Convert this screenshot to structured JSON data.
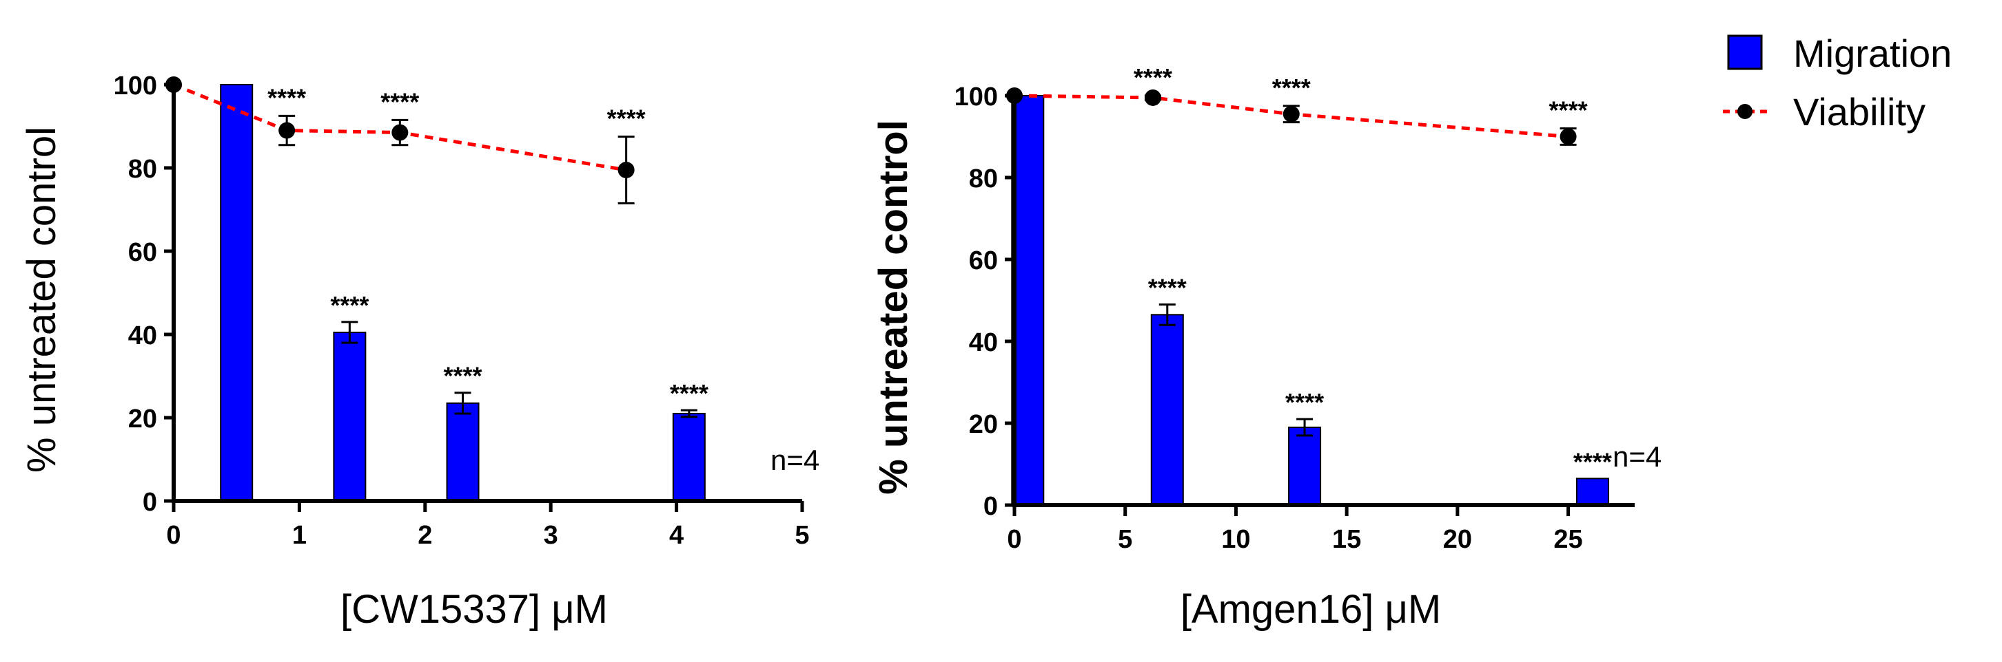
{
  "colors": {
    "migration": "#0000ff",
    "viability": "#ff0000",
    "marker": "#000000",
    "axis": "#000000"
  },
  "legend": {
    "placement": "top-right",
    "items": [
      {
        "label": "Migration",
        "marker": "blue square"
      },
      {
        "label": "Viability",
        "marker": "black dot on red dashed line"
      }
    ]
  },
  "chart_data": [
    {
      "type": "bar",
      "xlabel": "[CW15337] μM",
      "ylabel": "% untreated control",
      "xlim": [
        0,
        5
      ],
      "ylim": [
        0,
        100
      ],
      "xticks": [
        "0",
        "1",
        "2",
        "3",
        "4",
        "5"
      ],
      "yticks": [
        "0",
        "20",
        "40",
        "60",
        "80",
        "100"
      ],
      "annotation": "n=4",
      "bar_series": {
        "name": "Migration",
        "x": [
          0.5,
          1.4,
          2.3,
          4.1
        ],
        "values": [
          100,
          40.5,
          23.5,
          21
        ],
        "errors": [
          0,
          2.5,
          2.5,
          0.8
        ],
        "stars": [
          "",
          "****",
          "****",
          "****"
        ]
      },
      "line_series": {
        "name": "Viability",
        "x": [
          0,
          0.9,
          1.8,
          3.6
        ],
        "values": [
          100,
          89,
          88.5,
          79.5
        ],
        "errors": [
          0,
          3.5,
          3,
          8
        ],
        "stars": [
          "",
          "****",
          "****",
          "****"
        ]
      }
    },
    {
      "type": "bar",
      "xlabel": "[Amgen16] μM",
      "ylabel": "% untreated control",
      "xlim": [
        0,
        28
      ],
      "ylim": [
        0,
        100
      ],
      "xticks": [
        "0",
        "5",
        "10",
        "15",
        "20",
        "25"
      ],
      "yticks": [
        "0",
        "20",
        "40",
        "60",
        "80",
        "100"
      ],
      "annotation": "n=4",
      "bar_series": {
        "name": "Migration",
        "x": [
          0.6,
          6.9,
          13.1,
          26.1
        ],
        "values": [
          100,
          46.5,
          19,
          6.5
        ],
        "errors": [
          0,
          2.5,
          2,
          0
        ],
        "stars": [
          "",
          "****",
          "****",
          "****"
        ]
      },
      "line_series": {
        "name": "Viability",
        "x": [
          0,
          6.25,
          12.5,
          25
        ],
        "values": [
          100,
          99.5,
          95.5,
          90
        ],
        "errors": [
          0,
          0.5,
          2,
          2
        ],
        "stars": [
          "",
          "****",
          "****",
          "****"
        ]
      }
    }
  ]
}
